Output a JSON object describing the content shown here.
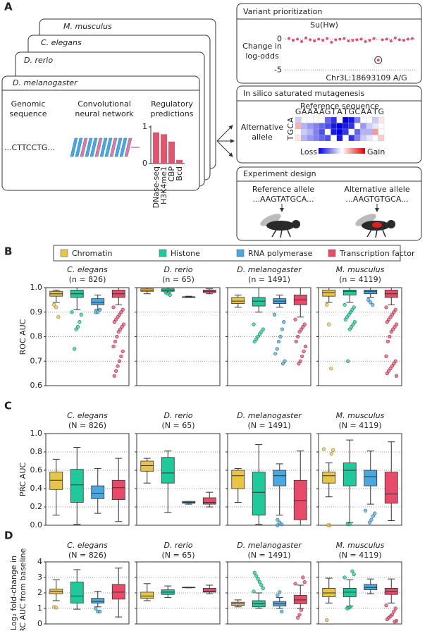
{
  "panel_a": {
    "label": "A",
    "species": [
      "M. musculus",
      "C. elegans",
      "D. rerio",
      "D. melanogaster"
    ],
    "input_label": [
      "Genomic",
      "sequence"
    ],
    "cnn_label": [
      "Convolutional",
      "neural network"
    ],
    "sequence": "...CTTCCTG...",
    "predictions": {
      "title": [
        "Regulatory",
        "predictions"
      ],
      "categories": [
        "DNase-seq",
        "H3K4me1",
        "CBP",
        "Bcd"
      ],
      "values": [
        0.85,
        0.8,
        0.6,
        0.1
      ],
      "color": "#e0566f",
      "ylim": [
        0,
        1
      ],
      "yticks": [
        0,
        1
      ]
    },
    "variant": {
      "title": "Variant prioritization",
      "subtitle": "Su(Hw)",
      "ylabel": [
        "Change in",
        "log-odds"
      ],
      "values": [
        0.1,
        -0.2,
        0,
        -0.4,
        0.2,
        -0.1,
        -0.3,
        0,
        -0.2,
        0.1,
        -0.5,
        -0.1,
        0,
        0.1,
        -0.3,
        -0.2,
        -0.1,
        0,
        -0.4,
        -0.2,
        0.1,
        -3.4,
        -0.1,
        0,
        -0.3,
        0.2,
        -0.1,
        -0.2,
        0,
        0.1
      ],
      "color": "#e05070",
      "ylim": [
        -6,
        1.2
      ],
      "yticks": [
        0,
        -5
      ],
      "annotation": "Chr3L:18693109 A/G"
    },
    "mutagenesis": {
      "title": "In silico saturated mutagenesis",
      "subtitle": "Reference sequence",
      "reference": [
        "G",
        "A",
        "A",
        "A",
        "A",
        "G",
        "T",
        "A",
        "T",
        "G",
        "C",
        "A",
        "A",
        "T",
        "G"
      ],
      "rows": [
        "A",
        "C",
        "G",
        "T"
      ],
      "ylabel": [
        "Alternative",
        "allele"
      ],
      "matrix": [
        [
          -0.2,
          0,
          0,
          0,
          0,
          -0.6,
          -0.8,
          0,
          -1,
          -0.9,
          -0.5,
          0,
          0,
          -0.2,
          0.1
        ],
        [
          0.3,
          -0.3,
          -0.4,
          -0.5,
          -0.6,
          -0.7,
          -0.9,
          -1,
          -0.9,
          -0.8,
          0,
          -0.4,
          -0.2,
          -0.1,
          0
        ],
        [
          0,
          -0.2,
          -0.3,
          -0.5,
          -0.7,
          0,
          -0.9,
          -1,
          -0.8,
          0,
          -0.6,
          -0.3,
          -0.3,
          0.4,
          0
        ],
        [
          0.1,
          -0.3,
          -0.4,
          -0.5,
          -0.6,
          -0.7,
          0,
          -0.9,
          0,
          -0.8,
          -0.5,
          -0.2,
          -0.1,
          0,
          0.2
        ]
      ],
      "legend": [
        "Loss",
        "Gain"
      ]
    },
    "experiment": {
      "title": "Experiment design",
      "reference": {
        "label": "Reference allele",
        "sequence": "...AAGTATGCA..."
      },
      "alternative": {
        "label": "Alternative allele",
        "sequence": "...AAGTGTGCA..."
      }
    }
  },
  "legend": {
    "names": [
      "Chromatin",
      "Histone",
      "RNA polymerase",
      "Transcription factor"
    ],
    "colors": [
      "#e8c547",
      "#1fc99a",
      "#4aa8e0",
      "#e84a6a"
    ]
  },
  "chart_data": [
    {
      "type": "box",
      "panel": "B",
      "ylabel": [
        "ROC AUC"
      ],
      "ylim": [
        0.6,
        1
      ],
      "grid": true,
      "yticks": [
        0.6,
        0.7,
        0.8,
        0.9,
        {
          "value": 1,
          "label": "1.0"
        }
      ],
      "panels": [
        {
          "title": "C. elegans",
          "subtitle": "(n = 826)",
          "boxes": [
            [
              0.94,
              0.965,
              0.975,
              0.985,
              0.99
            ],
            [
              0.91,
              0.96,
              0.975,
              0.99,
              1.0
            ],
            [
              0.91,
              0.93,
              0.94,
              0.955,
              0.97
            ],
            [
              0.93,
              0.96,
              0.975,
              0.99,
              1.0
            ]
          ],
          "outliers": [
            [
              0.93,
              0.92,
              0.88
            ],
            [
              0.9,
              0.89,
              0.86,
              0.84,
              0.83,
              0.75
            ],
            [
              0.9,
              0.9,
              0.91
            ],
            [
              0.92,
              0.91,
              0.9,
              0.89,
              0.88,
              0.87,
              0.86,
              0.85,
              0.84,
              0.83,
              0.82,
              0.8,
              0.78,
              0.76,
              0.74,
              0.72,
              0.7,
              0.68,
              0.66,
              0.64
            ]
          ]
        },
        {
          "title": "D. rerio",
          "subtitle": "(n = 65)",
          "boxes": [
            [
              0.975,
              0.985,
              0.99,
              0.995,
              1.0
            ],
            [
              0.98,
              0.985,
              0.99,
              0.995,
              1.0
            ],
            [
              0.96,
              0.96,
              0.962,
              0.963,
              0.965
            ],
            [
              0.975,
              0.98,
              0.985,
              0.99,
              0.995
            ]
          ],
          "outliers": [
            [],
            [
              0.98,
              0.975,
              0.97
            ],
            [],
            []
          ]
        },
        {
          "title": "D. melanogaster",
          "subtitle": "(n = 1491)",
          "boxes": [
            [
              0.92,
              0.935,
              0.945,
              0.96,
              0.97
            ],
            [
              0.9,
              0.925,
              0.945,
              0.96,
              1.0
            ],
            [
              0.92,
              0.935,
              0.945,
              0.955,
              0.97
            ],
            [
              0.88,
              0.93,
              0.95,
              0.97,
              1.0
            ]
          ],
          "outliers": [
            [],
            [
              0.85,
              0.83,
              0.82,
              0.81,
              0.8,
              0.79,
              0.78
            ],
            [
              0.89,
              0.86,
              0.83,
              0.8,
              0.78,
              0.75,
              0.73,
              0.7,
              0.69
            ],
            [
              0.87,
              0.85,
              0.84,
              0.83,
              0.82,
              0.8,
              0.78,
              0.76,
              0.74,
              0.72,
              0.7,
              0.69
            ]
          ]
        },
        {
          "title": "M. musculus",
          "subtitle": "(n = 4119)",
          "boxes": [
            [
              0.94,
              0.965,
              0.98,
              0.99,
              1.0
            ],
            [
              0.94,
              0.97,
              0.985,
              0.99,
              1.0
            ],
            [
              0.96,
              0.975,
              0.985,
              0.99,
              1.0
            ],
            [
              0.93,
              0.96,
              0.975,
              0.99,
              1.0
            ]
          ],
          "outliers": [
            [
              0.93,
              0.85,
              0.67
            ],
            [
              0.93,
              0.92,
              0.91,
              0.9,
              0.89,
              0.88,
              0.87,
              0.86,
              0.85,
              0.84,
              0.83,
              0.7
            ],
            [
              0.95,
              0.94,
              0.93
            ],
            [
              0.92,
              0.91,
              0.9,
              0.89,
              0.88,
              0.87,
              0.86,
              0.85,
              0.84,
              0.83,
              0.82,
              0.8,
              0.78,
              0.72,
              0.7,
              0.69,
              0.68,
              0.67,
              0.66,
              0.65,
              0.64
            ]
          ]
        }
      ]
    },
    {
      "type": "box",
      "panel": "C",
      "ylabel": [
        "PRC AUC"
      ],
      "ylim": [
        0,
        1
      ],
      "grid": true,
      "yticks": [
        {
          "value": 0,
          "label": "0.0"
        },
        0.2,
        0.4,
        0.6,
        0.8,
        {
          "value": 1,
          "label": "1.0"
        }
      ],
      "panels": [
        {
          "title": "C. elegans",
          "subtitle": "(N = 826)",
          "boxes": [
            [
              0.11,
              0.39,
              0.49,
              0.58,
              0.72
            ],
            [
              0.01,
              0.25,
              0.44,
              0.61,
              0.85
            ],
            [
              0.13,
              0.29,
              0.35,
              0.43,
              0.62
            ],
            [
              0.04,
              0.28,
              0.41,
              0.49,
              0.73
            ]
          ],
          "outliers": [
            [],
            [],
            [],
            []
          ]
        },
        {
          "title": "D. rerio",
          "subtitle": "(N = 65)",
          "boxes": [
            [
              0.46,
              0.59,
              0.65,
              0.7,
              0.73
            ],
            [
              0.14,
              0.46,
              0.57,
              0.74,
              0.81
            ],
            [
              0.23,
              0.24,
              0.25,
              0.26,
              0.26
            ],
            [
              0.2,
              0.23,
              0.25,
              0.3,
              0.36
            ]
          ],
          "outliers": [
            [],
            [],
            [],
            []
          ]
        },
        {
          "title": "D. melanogaster",
          "subtitle": "(N = 1491)",
          "boxes": [
            [
              0.25,
              0.4,
              0.54,
              0.6,
              0.62
            ],
            [
              0.01,
              0.11,
              0.36,
              0.58,
              0.88
            ],
            [
              0.11,
              0.43,
              0.54,
              0.6,
              0.67
            ],
            [
              0.0,
              0.06,
              0.27,
              0.49,
              0.81
            ]
          ],
          "outliers": [
            [],
            [],
            [
              0.06,
              0.03,
              0.01,
              0.0
            ],
            []
          ]
        },
        {
          "title": "M. musculus",
          "subtitle": "(N = 4119)",
          "boxes": [
            [
              0.31,
              0.46,
              0.54,
              0.58,
              0.68
            ],
            [
              0.03,
              0.43,
              0.6,
              0.68,
              0.93
            ],
            [
              0.23,
              0.43,
              0.53,
              0.6,
              0.81
            ],
            [
              0.05,
              0.24,
              0.34,
              0.58,
              0.91
            ]
          ],
          "outliers": [
            [
              0.83,
              0.82,
              0.78,
              0.0,
              0.0
            ],
            [
              0.01,
              0.01
            ],
            [
              0.16,
              0.13,
              0.1,
              0.06,
              0.03
            ],
            []
          ]
        }
      ]
    },
    {
      "type": "box",
      "panel": "D",
      "ylabel": [
        "Log₂ fold-change in",
        "PRC AUC from baseline"
      ],
      "ylim": [
        0,
        4
      ],
      "grid": true,
      "yticks": [
        0,
        1,
        2,
        3,
        4
      ],
      "panels": [
        {
          "title": "C. elegans",
          "subtitle": "(N = 826)",
          "boxes": [
            [
              1.5,
              1.95,
              2.1,
              2.25,
              2.85
            ],
            [
              0.95,
              1.35,
              1.8,
              2.7,
              3.5
            ],
            [
              1.1,
              1.35,
              1.45,
              1.65,
              2.1
            ],
            [
              0.45,
              1.6,
              2.05,
              2.55,
              3.6
            ]
          ],
          "outliers": [
            [
              1.1,
              1.05
            ],
            [],
            [
              1.0,
              0.8,
              0.8
            ],
            []
          ]
        },
        {
          "title": "D. rerio",
          "subtitle": "(N = 65)",
          "boxes": [
            [
              1.5,
              1.65,
              1.8,
              2.05,
              2.6
            ],
            [
              1.7,
              1.9,
              2.05,
              2.2,
              2.45
            ],
            [
              2.33,
              2.33,
              2.35,
              2.37,
              2.37
            ],
            [
              1.95,
              2.05,
              2.1,
              2.3,
              2.5
            ]
          ],
          "outliers": [
            [],
            [],
            [],
            []
          ]
        },
        {
          "title": "D. melanogaster",
          "subtitle": "(N = 1491)",
          "boxes": [
            [
              1.1,
              1.2,
              1.3,
              1.4,
              1.55
            ],
            [
              1.0,
              1.1,
              1.3,
              1.5,
              2.0
            ],
            [
              1.0,
              1.15,
              1.3,
              1.45,
              1.7
            ],
            [
              1.0,
              1.3,
              1.55,
              1.85,
              2.5
            ]
          ],
          "outliers": [
            [],
            [
              2.1,
              2.3,
              2.5,
              2.7,
              2.9,
              3.1,
              3.3
            ],
            [
              1.85,
              2.05,
              0.8
            ],
            [
              2.6,
              2.7,
              3.0,
              0.9,
              0.6,
              0.4
            ]
          ]
        },
        {
          "title": "M. musculus",
          "subtitle": "(N = 4119)",
          "boxes": [
            [
              1.35,
              1.75,
              2.0,
              2.3,
              2.95
            ],
            [
              1.15,
              1.75,
              2.05,
              2.3,
              2.85
            ],
            [
              1.95,
              2.2,
              2.35,
              2.55,
              2.9
            ],
            [
              1.35,
              1.9,
              2.1,
              2.3,
              2.9
            ]
          ],
          "outliers": [
            [
              0.25
            ],
            [
              3.0,
              3.2,
              3.4,
              1.1,
              1.05,
              1.0
            ],
            [],
            [
              1.2,
              1.0,
              0.8,
              0.6,
              0.5,
              0.4,
              0.3,
              0.2,
              0.15
            ]
          ]
        }
      ]
    }
  ]
}
